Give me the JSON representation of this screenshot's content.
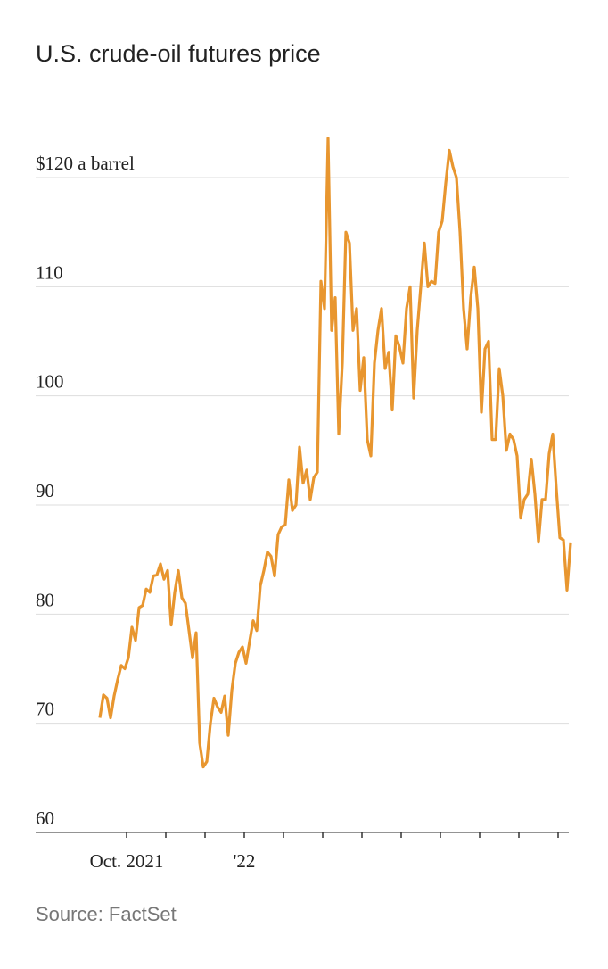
{
  "chart_data": {
    "type": "line",
    "title": "U.S. crude-oil futures price",
    "source": "Source: FactSet",
    "series": [
      {
        "color": "#e8962f",
        "values": [
          70.5,
          72.6,
          72.3,
          70.5,
          72.5,
          74,
          75.3,
          75,
          76,
          78.8,
          77.6,
          80.6,
          80.8,
          82.3,
          82,
          83.5,
          83.6,
          84.6,
          83.2,
          84,
          79,
          82,
          84,
          81.5,
          81,
          78.5,
          76,
          78.3,
          68.2,
          66,
          66.5,
          70,
          72.3,
          71.5,
          71,
          72.5,
          68.9,
          73,
          75.5,
          76.5,
          77,
          75.5,
          77.5,
          79.4,
          78.5,
          82.6,
          84,
          85.7,
          85.3,
          83.5,
          87.3,
          88,
          88.2,
          92.3,
          89.5,
          90,
          95.3,
          92,
          93.2,
          90.5,
          92.5,
          93,
          110.5,
          108,
          123.6,
          106,
          109,
          96.5,
          103,
          115,
          114,
          106,
          108,
          100.5,
          103.5,
          96,
          94.5,
          103,
          106,
          108,
          102.5,
          104,
          98.7,
          105.5,
          104.5,
          103,
          108,
          110,
          99.8,
          106,
          110,
          114,
          110,
          110.5,
          110.3,
          115,
          116,
          119.5,
          122.5,
          121,
          120,
          115,
          108,
          104.3,
          109,
          111.8,
          108,
          98.5,
          104.3,
          105,
          96,
          96,
          102.5,
          100,
          95,
          96.5,
          96,
          94.5,
          88.8,
          90.5,
          91,
          94.2,
          91,
          86.6,
          90.5,
          90.5,
          94.7,
          96.5,
          91.5,
          87,
          86.8,
          82.2,
          86.5
        ]
      }
    ],
    "xlim": [
      0,
      131
    ],
    "xticks": [
      {
        "value": 7.5,
        "label": "Oct. 2021"
      },
      {
        "value": 18.5,
        "label": null
      },
      {
        "value": 29.5,
        "label": null
      },
      {
        "value": 40.5,
        "label": "'22"
      },
      {
        "value": 51.5,
        "label": null
      },
      {
        "value": 62.5,
        "label": null
      },
      {
        "value": 73.5,
        "label": null
      },
      {
        "value": 84.5,
        "label": null
      },
      {
        "value": 95.5,
        "label": null
      },
      {
        "value": 106.5,
        "label": null
      },
      {
        "value": 117.5,
        "label": null
      },
      {
        "value": 128.5,
        "label": null
      }
    ],
    "ylim": [
      60,
      125
    ],
    "yticks": [
      60,
      70,
      80,
      90,
      100,
      110,
      {
        "value": 120,
        "label": "$120 a barrel"
      }
    ],
    "grid": true
  }
}
